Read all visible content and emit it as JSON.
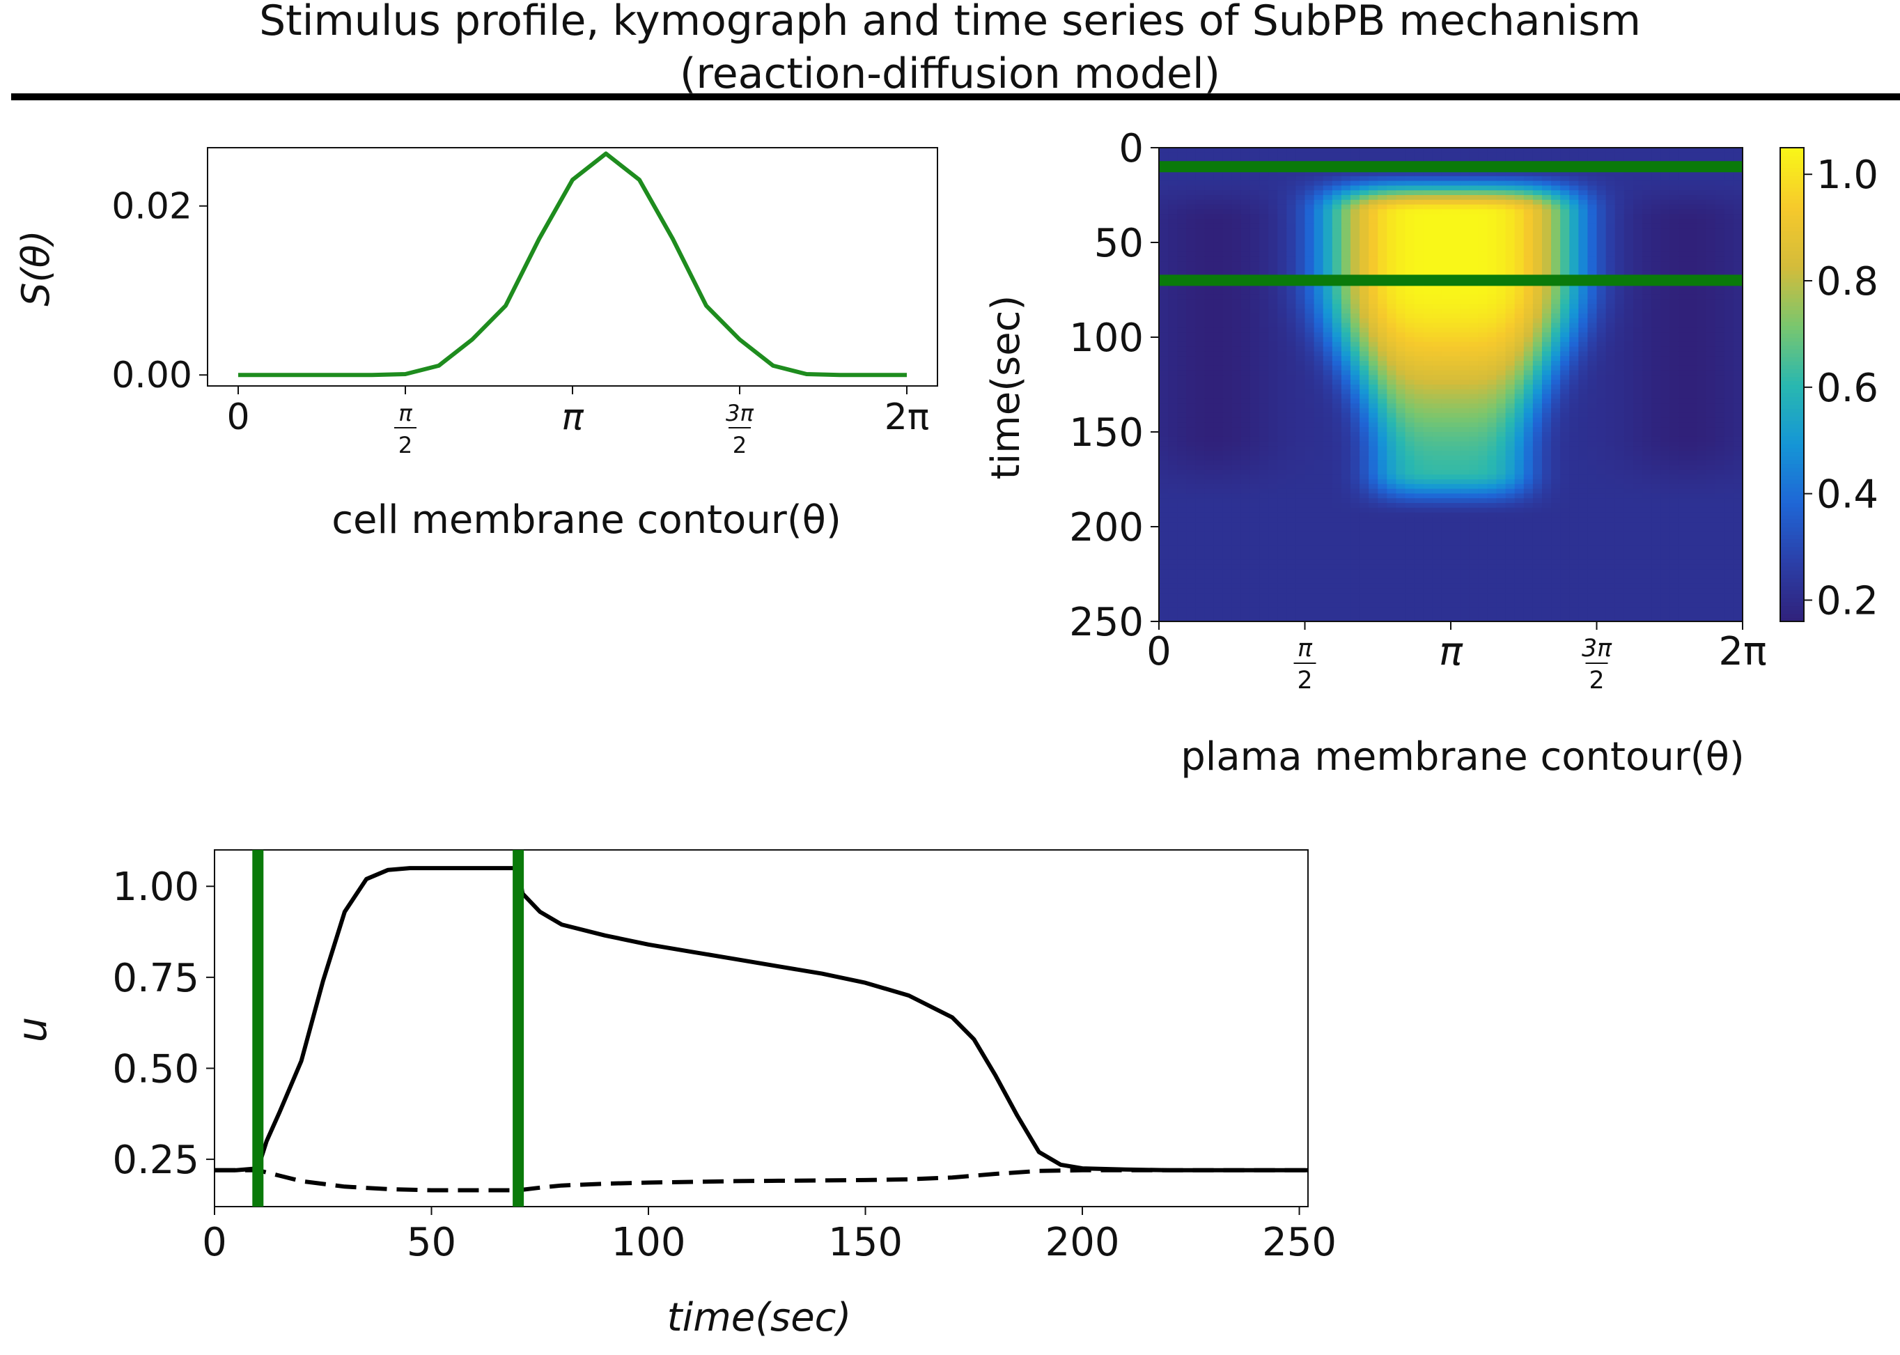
{
  "title": {
    "line1": "Stimulus profile, kymograph and time series of SubPB mechanism",
    "line2": "(reaction-diffusion model)"
  },
  "colors": {
    "stimulus_line": "#1e8c1e",
    "marker_green": "#0a7a0a",
    "trace": "#000000",
    "colormap": [
      "#30217a",
      "#2b3fa8",
      "#1f66d6",
      "#1596d6",
      "#29b8b0",
      "#7ac66e",
      "#d4bc3a",
      "#f6c92c",
      "#f9f718"
    ]
  },
  "chart_data": [
    {
      "id": "stimulus",
      "type": "line",
      "title": "",
      "xlabel": "cell membrane contour(θ)",
      "ylabel": "S(θ)",
      "xlim": [
        0,
        6.2832
      ],
      "ylim": [
        -0.0013,
        0.0269
      ],
      "x_ticks": [
        {
          "value": 0,
          "label": "0",
          "kind": "plain"
        },
        {
          "value": 1.5708,
          "num": "π",
          "den": "2",
          "kind": "frac"
        },
        {
          "value": 3.1416,
          "label": "π",
          "kind": "italic"
        },
        {
          "value": 4.7124,
          "num": "3π",
          "den": "2",
          "kind": "frac"
        },
        {
          "value": 6.2832,
          "label": "2π",
          "kind": "plain"
        }
      ],
      "y_ticks": [
        {
          "value": 0.0,
          "label": "0.00"
        },
        {
          "value": 0.02,
          "label": "0.02"
        }
      ],
      "x": [
        0,
        0.3142,
        0.6283,
        0.9425,
        1.2566,
        1.5708,
        1.885,
        2.1991,
        2.5133,
        2.8274,
        3.1416,
        3.4558,
        3.7699,
        4.0841,
        4.3982,
        4.7124,
        5.0265,
        5.3407,
        5.6549,
        5.969,
        6.2832
      ],
      "y": [
        0,
        0,
        0,
        0,
        0,
        0.0001,
        0.0011,
        0.0042,
        0.0082,
        0.0161,
        0.0231,
        0.0262,
        0.0231,
        0.0161,
        0.0082,
        0.0042,
        0.0011,
        0.0001,
        0,
        0,
        0
      ]
    },
    {
      "id": "kymograph",
      "type": "heatmap",
      "title": "",
      "xlabel": "plama membrane contour(θ)",
      "ylabel": "time(sec)",
      "xlim": [
        0,
        6.2832
      ],
      "ylim": [
        0,
        250
      ],
      "y_inverted": true,
      "x_ticks": [
        {
          "value": 0,
          "label": "0",
          "kind": "plain"
        },
        {
          "value": 1.5708,
          "num": "π",
          "den": "2",
          "kind": "frac"
        },
        {
          "value": 3.1416,
          "label": "π",
          "kind": "italic"
        },
        {
          "value": 4.7124,
          "num": "3π",
          "den": "2",
          "kind": "frac"
        },
        {
          "value": 6.2832,
          "label": "2π",
          "kind": "plain"
        }
      ],
      "y_ticks": [
        {
          "value": 0,
          "label": "0"
        },
        {
          "value": 50,
          "label": "50"
        },
        {
          "value": 100,
          "label": "100"
        },
        {
          "value": 150,
          "label": "150"
        },
        {
          "value": 200,
          "label": "200"
        },
        {
          "value": 250,
          "label": "250"
        }
      ],
      "colorbar": {
        "range": [
          0.16,
          1.05
        ],
        "ticks": [
          {
            "value": 0.2,
            "label": "0.2"
          },
          {
            "value": 0.4,
            "label": "0.4"
          },
          {
            "value": 0.6,
            "label": "0.6"
          },
          {
            "value": 0.8,
            "label": "0.8"
          },
          {
            "value": 1.0,
            "label": "1.0"
          }
        ]
      },
      "background_value": 0.22,
      "horizontal_markers": [
        10,
        70
      ],
      "activation": {
        "center": 3.1416,
        "halfwidth_rise": 1.35,
        "onset": [
          10,
          35
        ],
        "plateau": 1.05,
        "decay_start": 70,
        "decay_end": 190,
        "late_level": 0.62
      }
    },
    {
      "id": "timeseries",
      "type": "line",
      "title": "",
      "xlabel": "time(sec)",
      "ylabel": "u",
      "xlim": [
        0,
        252
      ],
      "ylim": [
        0.12,
        1.1
      ],
      "x_ticks": [
        {
          "value": 0,
          "label": "0"
        },
        {
          "value": 50,
          "label": "50"
        },
        {
          "value": 100,
          "label": "100"
        },
        {
          "value": 150,
          "label": "150"
        },
        {
          "value": 200,
          "label": "200"
        },
        {
          "value": 250,
          "label": "250"
        }
      ],
      "y_ticks": [
        {
          "value": 0.25,
          "label": "0.25"
        },
        {
          "value": 0.5,
          "label": "0.50"
        },
        {
          "value": 0.75,
          "label": "0.75"
        },
        {
          "value": 1.0,
          "label": "1.00"
        }
      ],
      "vertical_markers": [
        10,
        70
      ],
      "series": [
        {
          "style": "solid",
          "x": [
            0,
            5,
            10,
            12,
            15,
            20,
            25,
            30,
            35,
            40,
            45,
            50,
            60,
            70,
            71,
            75,
            80,
            90,
            100,
            110,
            120,
            130,
            140,
            150,
            160,
            170,
            175,
            180,
            185,
            190,
            195,
            200,
            210,
            220,
            230,
            240,
            252
          ],
          "y": [
            0.22,
            0.22,
            0.225,
            0.3,
            0.38,
            0.52,
            0.74,
            0.93,
            1.02,
            1.045,
            1.05,
            1.05,
            1.05,
            1.05,
            0.98,
            0.93,
            0.895,
            0.865,
            0.84,
            0.82,
            0.8,
            0.78,
            0.76,
            0.735,
            0.7,
            0.64,
            0.58,
            0.48,
            0.37,
            0.27,
            0.235,
            0.225,
            0.222,
            0.22,
            0.22,
            0.22,
            0.22
          ]
        },
        {
          "style": "dashed",
          "x": [
            0,
            5,
            10,
            15,
            20,
            30,
            40,
            50,
            60,
            70,
            75,
            80,
            90,
            100,
            110,
            120,
            130,
            140,
            150,
            160,
            170,
            180,
            190,
            200,
            210,
            220,
            230,
            240,
            252
          ],
          "y": [
            0.22,
            0.22,
            0.22,
            0.205,
            0.19,
            0.175,
            0.168,
            0.165,
            0.165,
            0.165,
            0.172,
            0.178,
            0.183,
            0.186,
            0.188,
            0.19,
            0.191,
            0.192,
            0.193,
            0.195,
            0.2,
            0.21,
            0.218,
            0.22,
            0.22,
            0.22,
            0.22,
            0.22,
            0.22
          ]
        }
      ]
    }
  ]
}
